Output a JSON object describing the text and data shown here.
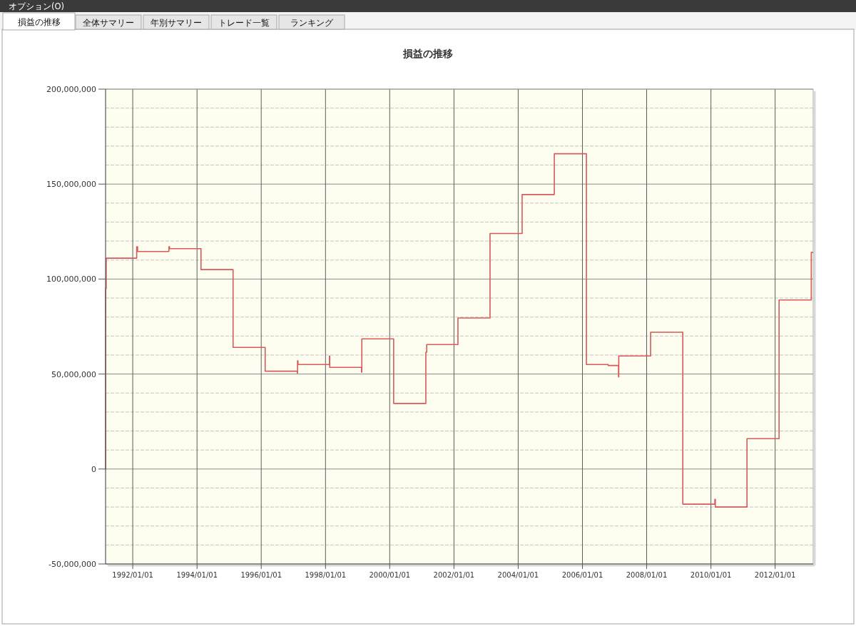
{
  "chart_data": {
    "type": "step",
    "title": "損益の推移",
    "annotations": [
      "オプション(O)",
      "損益の推移",
      "全体サマリー",
      "年別サマリー",
      "トレード一覧",
      "ランキング"
    ],
    "x": [
      "1991-02-26",
      "1991-02-27",
      "1991-03-05",
      "1992-02-15",
      "1992-02-25",
      "1993-02-15",
      "1993-02-22",
      "1994-02-15",
      "1995-02-15",
      "1996-02-15",
      "1997-02-15",
      "1997-02-17",
      "1997-02-22",
      "1998-02-15",
      "1998-02-18",
      "1999-02-15",
      "1999-02-18",
      "2000-02-15",
      "2001-02-15",
      "2001-02-25",
      "2002-02-15",
      "2003-02-15",
      "2004-02-15",
      "2005-02-15",
      "2006-02-15",
      "2006-10-20",
      "2007-02-15",
      "2007-02-18",
      "2008-02-15",
      "2009-02-15",
      "2010-02-15",
      "2010-02-20",
      "2011-02-15",
      "2012-02-15",
      "2013-02-15",
      "2013-03-05"
    ],
    "values": [
      0,
      95000000,
      111000000,
      117000000,
      114500000,
      117000000,
      116000000,
      105000000,
      64000000,
      51500000,
      50500000,
      57000000,
      55000000,
      59500000,
      53500000,
      51000000,
      68500000,
      34500000,
      61500000,
      65500000,
      79500000,
      124000000,
      144500000,
      166000000,
      55000000,
      54500000,
      48500000,
      59500000,
      72000000,
      -18500000,
      -16000000,
      -20000000,
      16000000,
      89000000,
      114000000,
      114000000
    ],
    "color": "#d65a5a",
    "xlim": [
      "1991-02-26",
      "2013-03-09"
    ],
    "xticks": [
      {
        "value": "1992-01-01",
        "label": "1992/01/01"
      },
      {
        "value": "1994-01-01",
        "label": "1994/01/01"
      },
      {
        "value": "1996-01-01",
        "label": "1996/01/01"
      },
      {
        "value": "1998-01-01",
        "label": "1998/01/01"
      },
      {
        "value": "2000-01-01",
        "label": "2000/01/01"
      },
      {
        "value": "2002-01-01",
        "label": "2002/01/01"
      },
      {
        "value": "2004-01-01",
        "label": "2004/01/01"
      },
      {
        "value": "2006-01-01",
        "label": "2006/01/01"
      },
      {
        "value": "2008-01-01",
        "label": "2008/01/01"
      },
      {
        "value": "2010-01-01",
        "label": "2010/01/01"
      },
      {
        "value": "2012-01-01",
        "label": "2012/01/01"
      }
    ],
    "ylim": [
      -50000000,
      200000000
    ],
    "yticks": [
      {
        "value": -50000000,
        "label": "-50,000,000"
      },
      {
        "value": -40000000,
        "label": null
      },
      {
        "value": -30000000,
        "label": null
      },
      {
        "value": -20000000,
        "label": null
      },
      {
        "value": -10000000,
        "label": null
      },
      {
        "value": 0,
        "label": "0"
      },
      {
        "value": 10000000,
        "label": null
      },
      {
        "value": 20000000,
        "label": null
      },
      {
        "value": 30000000,
        "label": null
      },
      {
        "value": 40000000,
        "label": null
      },
      {
        "value": 50000000,
        "label": "50,000,000"
      },
      {
        "value": 60000000,
        "label": null
      },
      {
        "value": 70000000,
        "label": null
      },
      {
        "value": 80000000,
        "label": null
      },
      {
        "value": 90000000,
        "label": null
      },
      {
        "value": 100000000,
        "label": "100,000,000"
      },
      {
        "value": 110000000,
        "label": null
      },
      {
        "value": 120000000,
        "label": null
      },
      {
        "value": 130000000,
        "label": null
      },
      {
        "value": 140000000,
        "label": null
      },
      {
        "value": 150000000,
        "label": "150,000,000"
      },
      {
        "value": 160000000,
        "label": null
      },
      {
        "value": 170000000,
        "label": null
      },
      {
        "value": 180000000,
        "label": null
      },
      {
        "value": 190000000,
        "label": null
      },
      {
        "value": 200000000,
        "label": "200,000,000"
      }
    ],
    "grid": true
  }
}
